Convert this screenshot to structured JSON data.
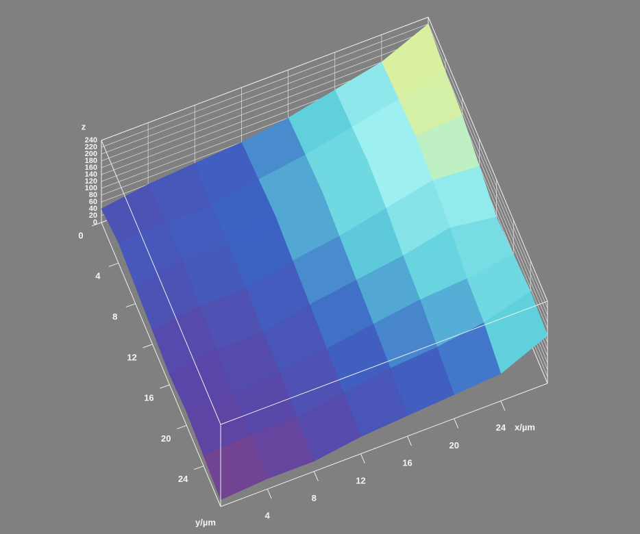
{
  "chart_data": {
    "type": "surface3d",
    "x_label": "x/µm",
    "y_label": "y/µm",
    "z_label": "z",
    "x": [
      0,
      4,
      8,
      12,
      16,
      20,
      24,
      28
    ],
    "y": [
      0,
      4,
      8,
      12,
      16,
      20,
      24,
      28
    ],
    "z": [
      [
        40,
        60,
        70,
        80,
        100,
        130,
        160,
        220
      ],
      [
        60,
        70,
        60,
        90,
        110,
        140,
        170,
        200
      ],
      [
        50,
        80,
        70,
        100,
        120,
        150,
        180,
        190
      ],
      [
        40,
        60,
        60,
        90,
        110,
        140,
        170,
        160
      ],
      [
        30,
        50,
        50,
        80,
        100,
        120,
        150,
        130
      ],
      [
        40,
        40,
        50,
        70,
        90,
        110,
        120,
        140
      ],
      [
        30,
        40,
        40,
        60,
        80,
        90,
        110,
        150
      ],
      [
        20,
        30,
        30,
        50,
        60,
        70,
        80,
        140
      ]
    ],
    "xlim": [
      0,
      28
    ],
    "ylim": [
      0,
      28
    ],
    "zlim": [
      0,
      240
    ],
    "xticks": [
      4,
      8,
      12,
      16,
      20,
      24
    ],
    "yticks": [
      0,
      4,
      8,
      12,
      16,
      20,
      24
    ],
    "zticks": [
      0,
      20,
      40,
      60,
      80,
      100,
      120,
      140,
      160,
      180,
      200,
      220,
      240
    ],
    "colors": [
      "#b03a55",
      "#5a46a8",
      "#3c63c4",
      "#5fd0dc",
      "#9ef0f0",
      "#f2f07a",
      "#ffffff"
    ],
    "grid": true
  }
}
